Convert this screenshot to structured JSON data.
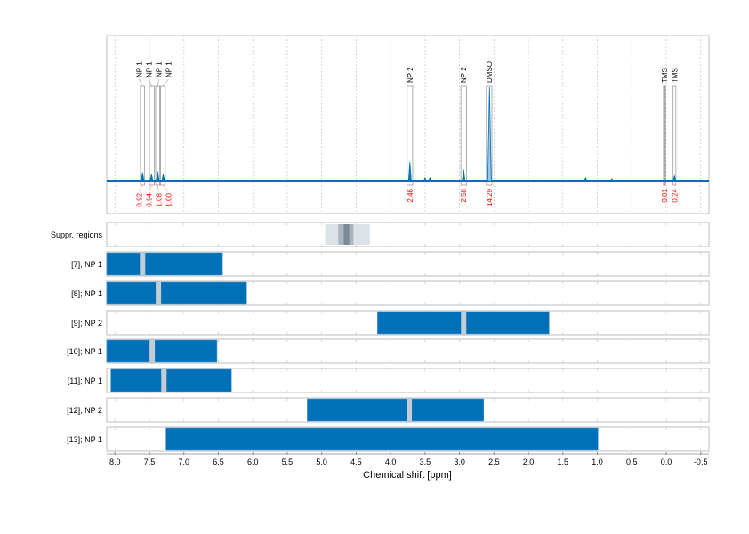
{
  "chart_data": {
    "type": "nmr-spectrum-with-region-tracks",
    "xlabel": "Chemical shift [ppm]",
    "xlim": [
      8.12,
      -0.62
    ],
    "xticks": [
      8.0,
      7.5,
      7.0,
      6.5,
      6.0,
      5.5,
      5.0,
      4.5,
      4.0,
      3.5,
      3.0,
      2.5,
      2.0,
      1.5,
      1.0,
      0.5,
      0.0,
      -0.5
    ],
    "xtick_labels": [
      "8.0",
      "7.5",
      "7.0",
      "6.5",
      "6.0",
      "5.5",
      "5.0",
      "4.5",
      "4.0",
      "3.5",
      "3.0",
      "2.5",
      "2.0",
      "1.5",
      "1.0",
      "0.5",
      "0.0",
      "-0.5"
    ],
    "grid": true,
    "colors": {
      "spectrum": "#0070b8",
      "region_bar": "#0070b8",
      "peak_mark": "#c3cdd4",
      "integral_text": "#ff0000",
      "suppr_light": "#dbe2e8",
      "suppr_mid": "#aab5bf",
      "suppr_dark": "#7a8a96"
    },
    "spectrum_peaks": [
      {
        "ppm": 7.6,
        "rel_height": 0.09
      },
      {
        "ppm": 7.47,
        "rel_height": 0.07
      },
      {
        "ppm": 7.38,
        "rel_height": 0.1
      },
      {
        "ppm": 7.3,
        "rel_height": 0.07
      },
      {
        "ppm": 3.72,
        "rel_height": 0.2
      },
      {
        "ppm": 3.5,
        "rel_height": 0.03
      },
      {
        "ppm": 3.43,
        "rel_height": 0.03
      },
      {
        "ppm": 2.94,
        "rel_height": 0.12
      },
      {
        "ppm": 2.565,
        "rel_height": 1.0
      },
      {
        "ppm": 1.17,
        "rel_height": 0.03
      },
      {
        "ppm": 0.79,
        "rel_height": 0.02
      },
      {
        "ppm": -0.12,
        "rel_height": 0.05
      }
    ],
    "integration_regions": [
      {
        "label": "NP 1",
        "from": 7.63,
        "to": 7.57,
        "integral": "0.92"
      },
      {
        "label": "NP 1",
        "from": 7.5,
        "to": 7.43,
        "integral": "0.94"
      },
      {
        "label": "NP 1",
        "from": 7.41,
        "to": 7.35,
        "integral": "1.08"
      },
      {
        "label": "NP 1",
        "from": 7.34,
        "to": 7.27,
        "integral": "1.00"
      },
      {
        "label": "NP 2",
        "from": 3.76,
        "to": 3.68,
        "integral": "2.46"
      },
      {
        "label": "NP 2",
        "from": 2.98,
        "to": 2.9,
        "integral": "2.58"
      },
      {
        "label": "DMSO",
        "from": 2.61,
        "to": 2.53,
        "integral": "14.29"
      },
      {
        "label": "TMS",
        "from": 0.04,
        "to": 0.01,
        "integral": "0.01",
        "filled": true
      },
      {
        "label": "TMS",
        "from": -0.1,
        "to": -0.14,
        "integral": "0.24"
      }
    ],
    "suppression": {
      "label": "Suppr. regions",
      "outer": [
        4.95,
        4.3
      ],
      "mid": [
        4.76,
        4.54
      ],
      "inner": [
        4.68,
        4.6
      ]
    },
    "tracks": [
      {
        "label": "[7]; NP 1",
        "from": 8.12,
        "to": 6.44,
        "marks": [
          7.6
        ]
      },
      {
        "label": "[8]; NP 1",
        "from": 8.12,
        "to": 6.09,
        "marks": [
          7.37
        ]
      },
      {
        "label": "[9]; NP 2",
        "from": 4.19,
        "to": 1.7,
        "marks": [
          2.94
        ]
      },
      {
        "label": "[10]; NP 1",
        "from": 8.12,
        "to": 6.52,
        "marks": [
          7.46
        ]
      },
      {
        "label": "[11]; NP 1",
        "from": 8.06,
        "to": 6.31,
        "marks": [
          7.29
        ]
      },
      {
        "label": "[12]; NP 2",
        "from": 5.21,
        "to": 2.65,
        "marks": [
          3.73
        ]
      },
      {
        "label": "[13]; NP 1",
        "from": 7.26,
        "to": 0.99,
        "marks": []
      }
    ]
  }
}
